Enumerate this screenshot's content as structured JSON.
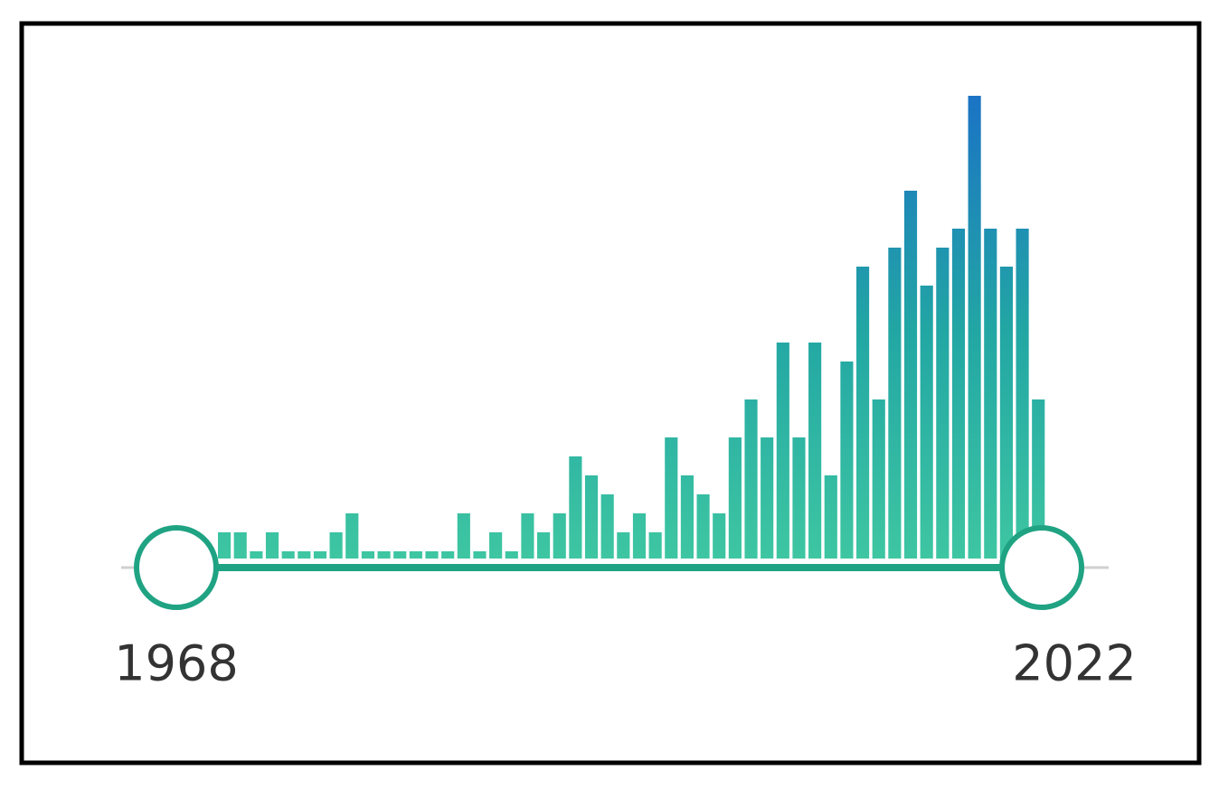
{
  "slider": {
    "min": 1968,
    "max": 2022,
    "histogram": {
      "type": "bar",
      "values": [
        1,
        1,
        0,
        1,
        0,
        0,
        0,
        1,
        2,
        0,
        0,
        0,
        0,
        0,
        0,
        2,
        0,
        1,
        0,
        2,
        1,
        2,
        5,
        4,
        3,
        1,
        2,
        1,
        6,
        4,
        3,
        2,
        6,
        8,
        6,
        11,
        6,
        11,
        4,
        10,
        15,
        8,
        16,
        19,
        14,
        16,
        17,
        24,
        17,
        15,
        17,
        8
      ]
    }
  }
}
